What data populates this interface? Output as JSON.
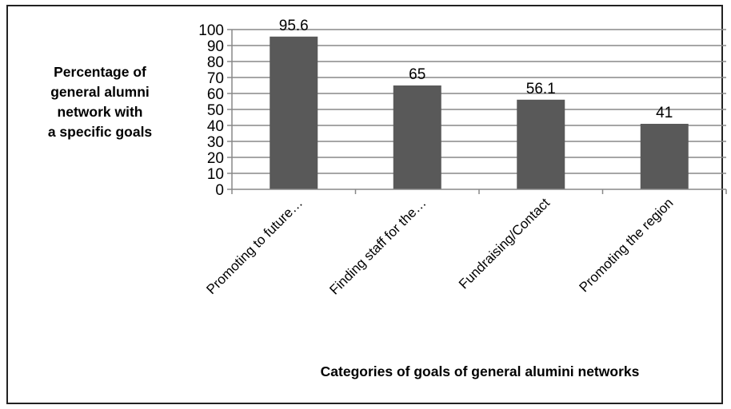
{
  "chart_data": {
    "type": "bar",
    "categories": [
      "Promoting to future…",
      "Finding staff for the…",
      "Fundraising/Contact",
      "Promoting the region"
    ],
    "values": [
      95.6,
      65,
      56.1,
      41
    ],
    "data_labels": [
      "95.6",
      "65",
      "56.1",
      "41"
    ],
    "ylabel_lines": [
      "Percentage of",
      "general alumni",
      "network with",
      "a specific goals"
    ],
    "xlabel": "Categories of  goals of general alumini networks",
    "ylim": [
      0,
      100
    ],
    "yticks": [
      0,
      10,
      20,
      30,
      40,
      50,
      60,
      70,
      80,
      90,
      100
    ],
    "grid": true,
    "legend": "none",
    "colors": {
      "bar": "#595959",
      "grid": "#888888",
      "axis": "#888888",
      "text": "#000000"
    }
  }
}
